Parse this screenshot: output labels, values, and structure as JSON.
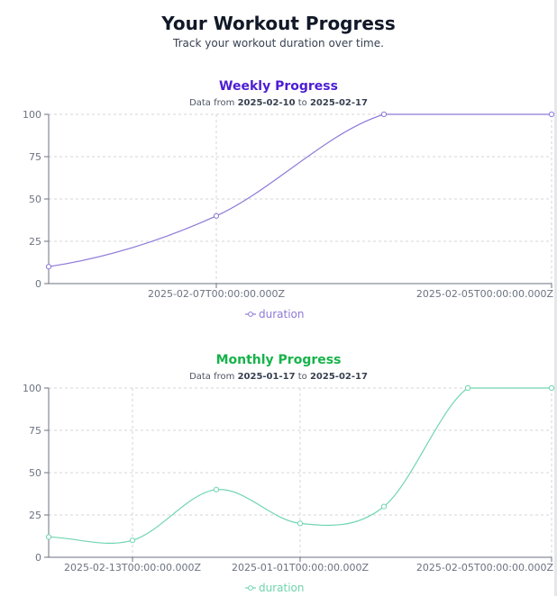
{
  "header": {
    "title": "Your Workout Progress",
    "subtitle": "Track your workout duration over time."
  },
  "range_prefix": "Data from",
  "range_joiner": "to",
  "chart_data": [
    {
      "type": "line",
      "title": "Weekly Progress",
      "title_color": "#4c1dd3",
      "line_color": "#8e79d8",
      "range_start": "2025-02-10",
      "range_end": "2025-02-17",
      "x_tick_labels": [
        "2025-02-07T00:00:00.000Z",
        "2025-02-05T00:00:00.000Z"
      ],
      "x_tick_indices": [
        1,
        3
      ],
      "y_ticks": [
        0,
        25,
        50,
        75,
        100
      ],
      "ylim": [
        0,
        100
      ],
      "grid": true,
      "legend_position": "bottom",
      "series": [
        {
          "name": "duration",
          "values": [
            10,
            40,
            100,
            100
          ]
        }
      ]
    },
    {
      "type": "line",
      "title": "Monthly Progress",
      "title_color": "#16b34a",
      "line_color": "#6fd5b0",
      "range_start": "2025-01-17",
      "range_end": "2025-02-17",
      "x_tick_labels": [
        "2025-02-13T00:00:00.000Z",
        "2025-01-01T00:00:00.000Z",
        "2025-02-05T00:00:00.000Z"
      ],
      "x_tick_indices": [
        1,
        3,
        6
      ],
      "y_ticks": [
        0,
        25,
        50,
        75,
        100
      ],
      "ylim": [
        0,
        100
      ],
      "grid": true,
      "legend_position": "bottom",
      "series": [
        {
          "name": "duration",
          "values": [
            12,
            10,
            40,
            20,
            30,
            100,
            100
          ]
        }
      ]
    }
  ]
}
